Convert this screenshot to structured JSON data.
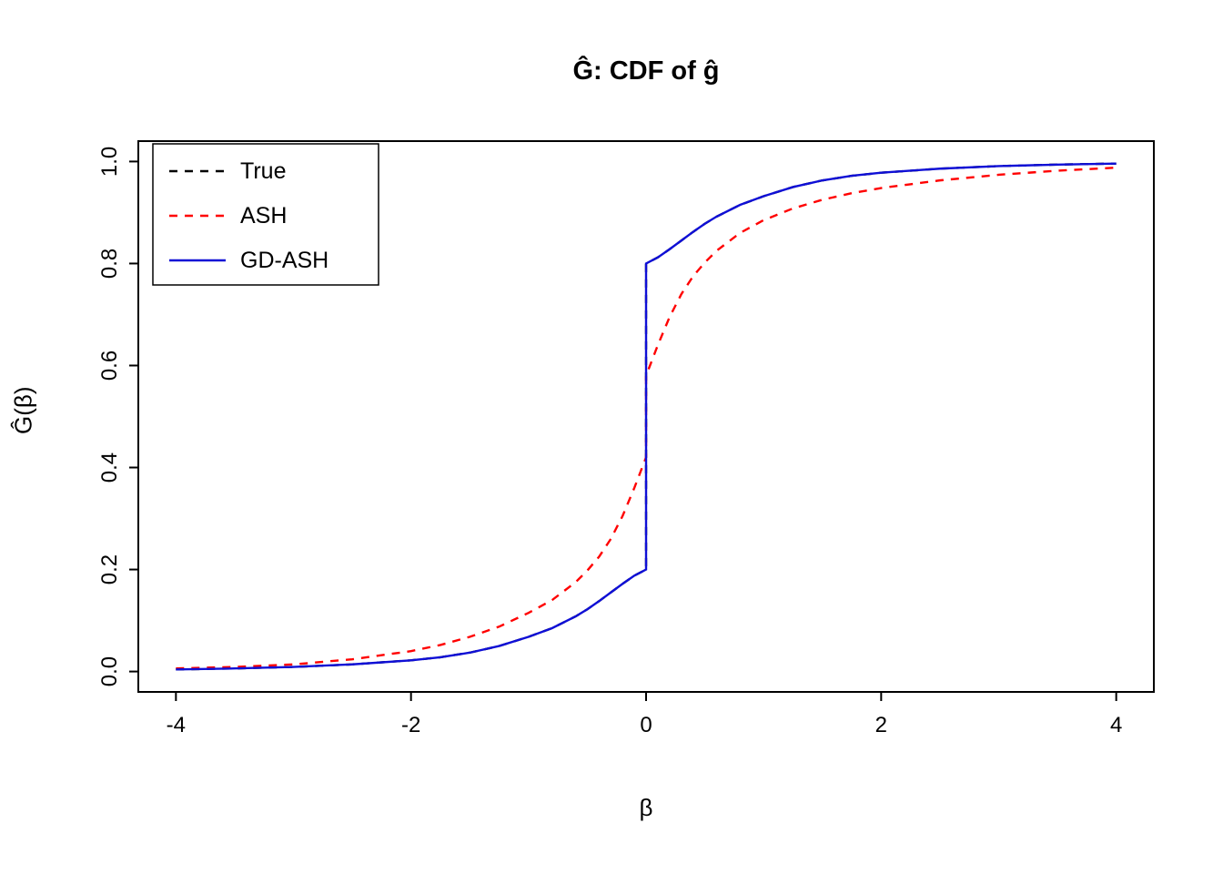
{
  "chart_data": {
    "type": "line",
    "title": "Ĝ: CDF of ĝ",
    "xlabel": "β",
    "ylabel": "Ĝ(β)",
    "xlim": [
      -4,
      4
    ],
    "ylim": [
      0,
      1
    ],
    "x_ticks": [
      "-4",
      "-2",
      "0",
      "2",
      "4"
    ],
    "y_ticks": [
      "0.0",
      "0.2",
      "0.4",
      "0.6",
      "0.8",
      "1.0"
    ],
    "grid": "off",
    "legend_position": "topleft",
    "background": "#ffffff",
    "box_color": "#000000",
    "x": [
      -4,
      -3.5,
      -3,
      -2.5,
      -2,
      -1.75,
      -1.5,
      -1.25,
      -1,
      -0.8,
      -0.6,
      -0.5,
      -0.4,
      -0.3,
      -0.2,
      -0.1,
      -0.05,
      0,
      0,
      0.05,
      0.1,
      0.2,
      0.3,
      0.4,
      0.5,
      0.6,
      0.8,
      1,
      1.25,
      1.5,
      1.75,
      2,
      2.5,
      3,
      3.5,
      4
    ],
    "series": [
      {
        "name": "True",
        "color": "#000000",
        "style": "dashed",
        "note": "overplotted beneath GD-ASH curve",
        "values": [
          0.004,
          0.006,
          0.009,
          0.014,
          0.022,
          0.028,
          0.037,
          0.05,
          0.068,
          0.085,
          0.108,
          0.122,
          0.138,
          0.155,
          0.172,
          0.188,
          0.194,
          0.2,
          0.8,
          0.806,
          0.812,
          0.828,
          0.845,
          0.862,
          0.878,
          0.892,
          0.915,
          0.932,
          0.95,
          0.963,
          0.972,
          0.978,
          0.986,
          0.991,
          0.994,
          0.996
        ]
      },
      {
        "name": "ASH",
        "color": "#ff0000",
        "style": "dashed",
        "values": [
          0.006,
          0.009,
          0.014,
          0.024,
          0.04,
          0.052,
          0.068,
          0.088,
          0.115,
          0.14,
          0.175,
          0.198,
          0.225,
          0.26,
          0.305,
          0.36,
          0.39,
          0.42,
          0.58,
          0.61,
          0.64,
          0.695,
          0.74,
          0.775,
          0.802,
          0.825,
          0.86,
          0.885,
          0.908,
          0.925,
          0.938,
          0.948,
          0.963,
          0.974,
          0.982,
          0.988
        ]
      },
      {
        "name": "GD-ASH",
        "color": "#0f0fd6",
        "style": "solid",
        "values": [
          0.004,
          0.006,
          0.009,
          0.014,
          0.022,
          0.028,
          0.037,
          0.05,
          0.068,
          0.085,
          0.108,
          0.122,
          0.138,
          0.155,
          0.172,
          0.188,
          0.194,
          0.2,
          0.8,
          0.806,
          0.812,
          0.828,
          0.845,
          0.862,
          0.878,
          0.892,
          0.915,
          0.932,
          0.95,
          0.963,
          0.972,
          0.978,
          0.986,
          0.991,
          0.994,
          0.996
        ]
      }
    ]
  }
}
